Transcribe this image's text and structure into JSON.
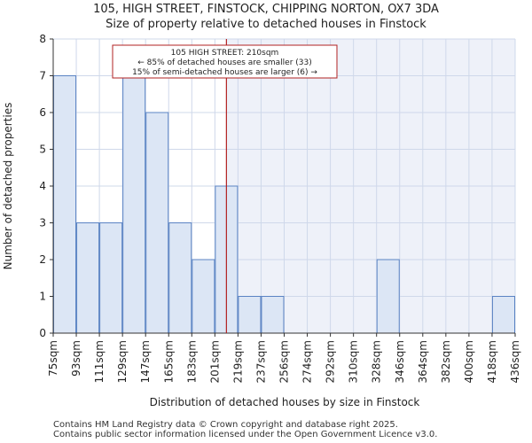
{
  "header": {
    "title": "105, HIGH STREET, FINSTOCK, CHIPPING NORTON, OX7 3DA",
    "subtitle": "Size of property relative to detached houses in Finstock"
  },
  "chart_data": {
    "type": "bar",
    "title": "105, HIGH STREET, FINSTOCK, CHIPPING NORTON, OX7 3DA",
    "subtitle": "Size of property relative to detached houses in Finstock",
    "xlabel": "Distribution of detached houses by size in Finstock",
    "ylabel": "Number of detached properties",
    "x_tick_labels": [
      "75sqm",
      "93sqm",
      "111sqm",
      "129sqm",
      "147sqm",
      "165sqm",
      "183sqm",
      "201sqm",
      "219sqm",
      "237sqm",
      "256sqm",
      "274sqm",
      "292sqm",
      "310sqm",
      "328sqm",
      "346sqm",
      "364sqm",
      "382sqm",
      "400sqm",
      "418sqm",
      "436sqm"
    ],
    "values": [
      7,
      3,
      3,
      7,
      6,
      3,
      2,
      4,
      1,
      1,
      0,
      0,
      0,
      0,
      2,
      0,
      0,
      0,
      0,
      1
    ],
    "y_ticks": [
      0,
      1,
      2,
      3,
      4,
      5,
      6,
      7,
      8
    ],
    "ylim": [
      0,
      8
    ],
    "property_marker": {
      "value_sqm": 210,
      "color": "#b22222"
    },
    "annotation": {
      "lines": [
        "105 HIGH STREET: 210sqm",
        "← 85% of detached houses are smaller (33)",
        "15% of semi-detached houses are larger (6) →"
      ]
    },
    "colors": {
      "bar_fill": "#dce6f5",
      "bar_stroke": "#5b84c4",
      "highlight_region": "#eef1f9",
      "grid": "#cfd8ea",
      "marker": "#b22222"
    },
    "grid": true
  },
  "footer": {
    "line1": "Contains HM Land Registry data © Crown copyright and database right 2025.",
    "line2": "Contains public sector information licensed under the Open Government Licence v3.0."
  }
}
